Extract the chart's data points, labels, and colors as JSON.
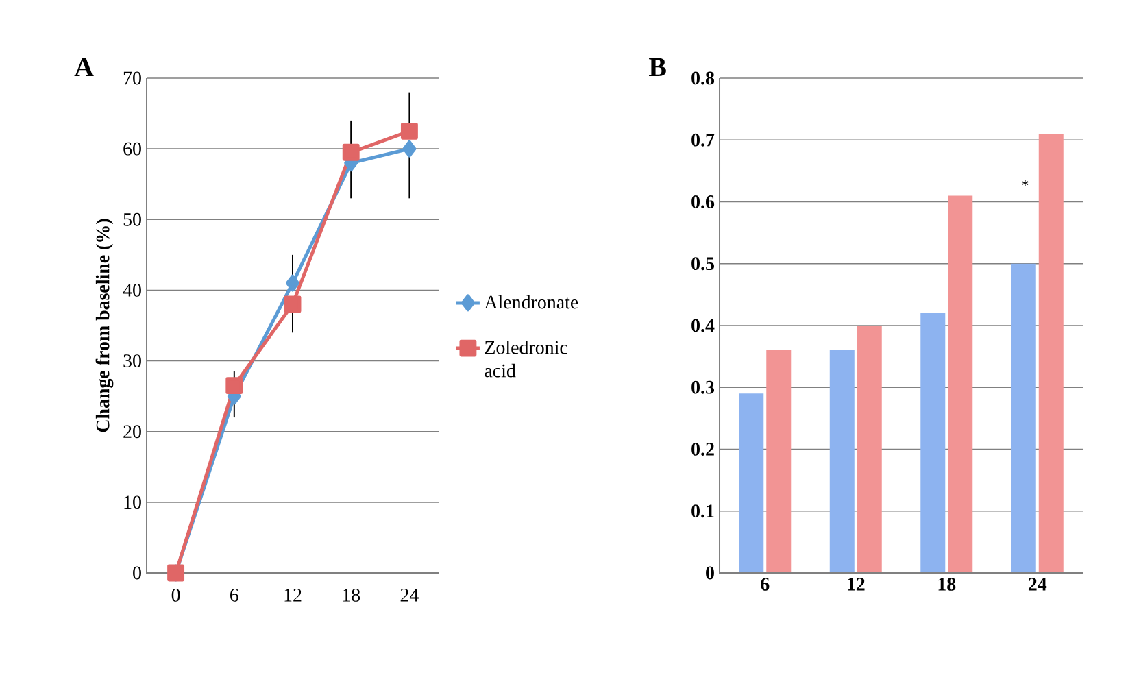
{
  "chart_data": [
    {
      "type": "line",
      "title": "A",
      "ylabel": "Change from baseline (%)",
      "categories": [
        "0",
        "6",
        "12",
        "18",
        "24"
      ],
      "ylim": [
        0,
        70
      ],
      "yticks": [
        0,
        10,
        20,
        30,
        40,
        50,
        60,
        70
      ],
      "grid": "y",
      "legend": "right",
      "line_style": "solid",
      "series": [
        {
          "name": "Alendronate",
          "color": "#5b9bd5",
          "marker": "diamond",
          "values": [
            0,
            25,
            41,
            58,
            60
          ],
          "errors": [
            null,
            [
              22,
              25
            ],
            [
              41,
              45
            ],
            [
              53,
              58
            ],
            [
              53,
              60
            ]
          ]
        },
        {
          "name": "Zoledronic acid",
          "color": "#e06666",
          "marker": "square",
          "values": [
            0,
            26.5,
            38,
            59.5,
            62.5
          ],
          "errors": [
            null,
            [
              26.5,
              28.5
            ],
            [
              34,
              38
            ],
            [
              59.5,
              64
            ],
            [
              62.5,
              68
            ]
          ]
        }
      ]
    },
    {
      "type": "bar",
      "title": "B",
      "categories": [
        "6",
        "12",
        "18",
        "24"
      ],
      "ylim": [
        0,
        0.8
      ],
      "yticks": [
        0,
        0.1,
        0.2,
        0.3,
        0.4,
        0.5,
        0.6,
        0.7,
        0.8
      ],
      "grid": "y",
      "series": [
        {
          "color": "#8db3f0",
          "values": [
            0.29,
            0.36,
            0.42,
            0.5
          ]
        },
        {
          "color": "#f29494",
          "values": [
            0.36,
            0.4,
            0.61,
            0.71
          ]
        }
      ],
      "annotations": [
        {
          "text": "*",
          "x": "24",
          "y": 0.61
        }
      ]
    }
  ]
}
